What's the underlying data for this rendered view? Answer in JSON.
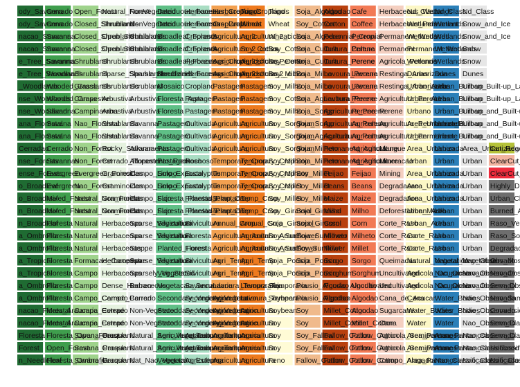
{
  "chart_data": {
    "type": "table",
    "title": "",
    "xlabel": "",
    "ylabel": "",
    "grid": false,
    "legend": "none",
    "columns": [
      {
        "color": "#1f6b32",
        "cells": [
          "ody_Savanna",
          "ody_Savanna",
          "nacao_Savanna",
          "nacao_Savanna",
          "e_Tree_Savanna",
          "e_Tree_Savanna",
          "_Woodlands",
          "nse_Woodlands",
          "nse_Woodland",
          "ana_Florestal",
          "ana_Florestal",
          "Cerradao",
          "nse_Forests",
          "ense_Forests",
          "o_Broadleaf",
          "o_Broadleaf",
          "n_Broadleaf",
          "n_Broadleaf",
          "a_Ombrofila",
          "a_Ombrofila",
          "a_Tropical",
          "a_Tropical",
          "a_Ombrofila",
          "a_Ombrofila",
          "nacao_Florestal",
          "nacao_Florestal",
          "Floresta",
          "Forest",
          "n_Needleleaf"
        ]
      },
      {
        "color": "#3f9e4d",
        "cells": [
          "Cerrado",
          "Cerrado",
          "Savanna",
          "Savanna",
          "Savanna",
          "Woodlands",
          "Wooded_Grass",
          "Wooded_Grass",
          "Savanna",
          "Savana",
          "Savana",
          "Cerrado",
          "Savannas",
          "Evergreen",
          "Evergreen",
          "Mixed_Forest",
          "Mixed_Forest",
          "Floresta",
          "Floresta",
          "Floresta",
          "Floresta",
          "Floresta",
          "Floresta",
          "Floresta",
          "Mata_Araucaria",
          "Mata_Araucaria",
          "Floresta_Open_Forest",
          "Open_Forest",
          "Floresta_Ombrofila"
        ]
      },
      {
        "color": "#9fd38c",
        "cells": [
          "Open_Forest",
          "Closed_Shrubland",
          "Closed_Shrubland",
          "Closed_Shrubland",
          "Shrubland",
          "Shrubland",
          "Grasslands",
          "Campestre",
          "Campinarana",
          "Nao_Florestal",
          "Nao_Florestal",
          "Non_Forest",
          "Non_Forest",
          "Evergreen_Forest",
          "Nao_Forest",
          "Natural_Non_Forest",
          "Natural_Non_Forest",
          "Natural",
          "Natural",
          "Natural",
          "Formacao_Campestre",
          "Campo",
          "Campo",
          "Campo_Cerrado",
          "Campo_Cerrado",
          "Campo_Cerrado",
          "Savana_Parque",
          "Savana_Parque",
          "Savana_Parque"
        ]
      },
      {
        "color": "#e5f2df",
        "cells": [
          "Natural_Forest",
          "Shrublands",
          "Open_Shrublands",
          "Open_Shrublands",
          "Shrublands",
          "Sparse_Shrublands",
          "Shrublands",
          "Arbustiva",
          "Arbustiva",
          "Shrublands",
          "Shrublands",
          "Rocky_Savanna",
          "Cerrado_Rupestre",
          "Graminoides",
          "Graminoides",
          "Graminoides",
          "Graminoides",
          "Herbaceous",
          "Herbaceous",
          "Herbaceous",
          "Herbaceous",
          "Herbaceous",
          "Dense_Herbaceous",
          "Campo_Cerrado",
          "Estepe",
          "Estepe",
          "Grassland",
          "Grassland",
          "Grassland"
        ]
      },
      {
        "color": "#e9ecea",
        "cells": [
          "NonVegetated",
          "NonVegetated",
          "Shrublands",
          "Shrublands",
          "Shrublands",
          "Sparse_Shrublands",
          "Scrubland",
          "Arbustiva",
          "Arbustiva",
          "Savanna",
          "Savanna",
          "Afloramento",
          "Afloramento_Rochoso",
          "Campo_Limpo",
          "Campo_Limpo",
          "Campo_Sujo",
          "Campo_Sujo",
          "Sparse_Vegetation",
          "Sparse_Vegetation",
          "Steppe",
          "Sparse_Vegetation",
          "Sparsely_Vegetated",
          "Barren",
          "Barren",
          "Non-Vegetated",
          "Non-Vegetated",
          "Natural_Sem_Vegetacao",
          "Natural_Sem_Vegetacao",
          "Nat_Nao_Vegetal"
        ]
      },
      {
        "color": "#5fbf86",
        "cells": [
          "Deciduous_Forests",
          "Deciduous_Forests",
          "Broadleaf_Forests",
          "Broadleaf_Forests",
          "Broadleaf_Forests",
          "Needleleaf_Forests",
          "Mosaico",
          "Floresta_Agro",
          "Floresta",
          "Pastagem",
          "Pastagem",
          "Pastagem",
          "Pastagem",
          "Solo_Exposto",
          "Solo_Exposto",
          "Floresta_Plantada",
          "Floresta_Plantada",
          "Silvicultura",
          "Silvicultura",
          "Planted_Forest",
          "Silvicultura",
          "Veg_Sec",
          "Vegetacao_Secundaria",
          "Secondary_Vegetation",
          "Secondary_Vegetation",
          "Secondary_Vegetation",
          "Agricultura_Temporaria",
          "Agricultura_Temporaria",
          "Vegetacao_Estepica"
        ]
      },
      {
        "color": "#a9ddc3",
        "cells": [
          "Herbaceous_Croplands",
          "Herbaceous_Croplands",
          "Croplands",
          "Croplands",
          "Herbaceous_Croplands",
          "Herbaceous_Croplands",
          "Cropland",
          "Pastagem",
          "Pastagem",
          "Cultivada",
          "Cultivada",
          "Cultivada",
          "Rochoso",
          "Eucalyptus",
          "Eucalyptus",
          "Floresta_Plantada",
          "Floresta_Plantada",
          "Silvicultura",
          "Floresta",
          "Floresta",
          "Silvicultura",
          "Silvicultura",
          "Savanna",
          "Secondary_Vegetation",
          "Secondary_Vegetation",
          "Secondary_Vegetation",
          "Agricultura_Temporaria",
          "Agricultura_Temporaria",
          "Agricultura"
        ]
      },
      {
        "color": "#f2a050",
        "cells": [
          "Herbaceous_Croplands",
          "Croplands",
          "Agricultura_2",
          "Agricultura_2_ciclos",
          "Agricultura_2_ciclos",
          "Agricultura_2_ciclos",
          "Pastagem",
          "Pastagem",
          "Pastagem",
          "Agricultura",
          "Agricultura",
          "Agricultura",
          "Temporary_Crop",
          "Temporary_Crop",
          "Temporary_Crop",
          "Temp_Crop",
          "Temp_Crop",
          "Annual_Crop",
          "Agricultura_Anual",
          "Agricultura_Anual",
          "Agri_Temp",
          "Agri_Temp",
          "Lavoura_Temporaria",
          "Agricultura",
          "Agricultura",
          "Agricultura",
          "Agricultura",
          "Agricultura",
          "Agricultura"
        ]
      },
      {
        "color": "#ee7a1e",
        "cells": [
          "Trigo",
          "Wheat",
          "Agricultura_2_ciclos",
          "Soy_Cotton",
          "Agricultura_Perene",
          "Agricultura_2_ciclos",
          "Pastagem",
          "Pastagem",
          "Pastagem",
          "Agricultura",
          "Agricultura",
          "Agricultura",
          "Temporary_Crop",
          "Temporary_Crop",
          "Temporary_Crop",
          "Temp_Crop",
          "Temp_Crop",
          "Annual_Crop",
          "Agricultura_Anual",
          "Agricultura_Anual",
          "Agri_Temp",
          "Agri_Temp",
          "Lavoura_Temporaria",
          "Lavoura_Temporaria",
          "Agricultura",
          "Agricultura",
          "Agricultura",
          "Agricultura",
          "Agricultura"
        ]
      },
      {
        "color": "#fffbd6",
        "cells": [
          "Trigo",
          "Wheat",
          "Wheat",
          "Soy_Cotton",
          "Soy_Cotton",
          "Soy_Milho",
          "Soy_Milho",
          "Soy_Cotton",
          "Soy_Milho",
          "Soy_Sorghum",
          "Soy_Sorghum",
          "Soy_Sorghum",
          "Soy_Milheto",
          "Soy_Milheto",
          "Soy_Millet",
          "Soy_Millet",
          "Soy_Girassol",
          "Soja_Girassol",
          "Soy_Sunflower",
          "Soy_Sunflower",
          "Soja_Pousio",
          "Soja_Pousio",
          "Soja",
          "Soybean",
          "Soybean",
          "Soy",
          "Soy",
          "Soy",
          "Feno"
        ]
      },
      {
        "color": "#f0ba8c",
        "cells": [
          "Soja_Algodao",
          "Soy_Cotton",
          "Soja_Algodao",
          "Soja_Cultura",
          "Soja_Cultura",
          "Soja_Milho",
          "Soja_Milho",
          "Soja_Agricultura",
          "Soja_Sorgo",
          "Soja_Sorgo",
          "Soja_Agricultura",
          "Soja_Milheto",
          "Soja_Milheto",
          "Soy_Millet",
          "Soy_Millet",
          "Soy_Millet",
          "Soja_Girassol",
          "Soja_Girassol",
          "Soja_Sunflower",
          "Soy_Sunflower",
          "Soja_Pousio",
          "Soja_Pousio",
          "Pousio_Algodao",
          "Pousio_Algodao",
          "Soy",
          "Soy",
          "Soy_Fallow",
          "Soy_Fallow",
          "Fallow_Cotton"
        ]
      },
      {
        "color": "#b8400e",
        "cells": [
          "Algodao",
          "Cotton",
          "Perennial_Crop",
          "Cultura_Perene",
          "Cultura_Perene",
          "Lavoura_Perene",
          "Lavoura_Perene",
          "Lavoura_Perene",
          "Agricultura_Perene",
          "Agricultura_Perene",
          "Agricultura_Perene",
          "Permanent_Agriculture",
          "Permanent_Agriculture",
          "Feijao",
          "Beans",
          "Maize",
          "Milho",
          "Corn",
          "Milheto",
          "Millet",
          "Sorgo",
          "Sorghum",
          "Pousio_Algodao",
          "Algodao",
          "Millet_Cotton",
          "Millet_Cotton",
          "Fallow_Cotton",
          "Fallow_Cotton",
          "Fallow_Cotton"
        ]
      },
      {
        "color": "#f27a55",
        "cells": [
          "Cafe",
          "Coffee",
          "Perennial",
          "Cultura",
          "Perene",
          "Lavoura",
          "Lavoura",
          "Perene",
          "Perene",
          "Agricultura",
          "Agricultura",
          "Agricultura",
          "Agricultura",
          "Feijao",
          "Beans",
          "Maize",
          "Milho",
          "Corn",
          "Milheto",
          "Millet",
          "Sorgo",
          "Sorghum",
          "Uncultivated",
          "Algodao",
          "Algodao",
          "Millet_Cotton",
          "Fallow_Cotton",
          "Fallow_Cotton",
          "Fallow_Cotton"
        ]
      },
      {
        "color": "#f4cfc0",
        "cells": [
          "Herbaceous_Wetlands",
          "Herbaceous_Permanent",
          "Permanent_Wetlands",
          "Permanent",
          "Agricola_Perenne",
          "Restinga_Arborizada",
          "Restinga_Arborizada",
          "Agricultura_Perene",
          "Perene",
          "Agricultura_Permanente",
          "Agricultura_Permanente",
          "Mangue",
          "Mineracao",
          "Mining",
          "Degradacao",
          "Degradation",
          "Deforestation_Mask",
          "Corte_Raso",
          "Corte_Raso",
          "Corte_Raso",
          "Queimadas",
          "Uncultivated",
          "Uncultivated",
          "Cana_de_Acucar",
          "Sugarcane",
          "Cana",
          "Agricola_Semiperenne",
          "Agricola_Semiperenne",
          "Campo_Alagado"
        ]
      },
      {
        "color": "#fcf7c6",
        "cells": [
          "Nd_Class",
          "Wetlands",
          "Wetlands",
          "Permanent_Wetlands",
          "Wetlands",
          "Dunas",
          "Urban_Areas",
          "Urban_Areas",
          "Urbano",
          "Area_Urbanizada",
          "Urban",
          "Area_Urbanizada",
          "Urban",
          "Area_Urbanizada",
          "Area_Urbanizada",
          "Area_Urbanizada",
          "Urban_Area",
          "Urban_Area",
          "Corte_Raso",
          "Corte_Raso",
          "Natural_Vegetation",
          "Agricola_Ocupacao",
          "Agricola_Ocupacao",
          "Cana",
          "Water_Bodies",
          "Water",
          "Area_Pantanosa",
          "Area_Pantanosa",
          "Area_Pantanosa"
        ]
      },
      {
        "color": "#2b7fb8",
        "cells": [
          "Nd_Class",
          "Wetlands",
          "Wetlands",
          "Wetlands",
          "Wetlands",
          "Dunes",
          "Urban_Built-up",
          "Urban_Built-up",
          "Urban_Built-up",
          "Urban_Built-up",
          "Urban_Built-up",
          "Urban",
          "Urban",
          "Urban",
          "Urban",
          "Urban",
          "Urban",
          "Urban",
          "Urban",
          "Urban",
          "Natural_Vegetation",
          "Nao_Observado",
          "Nao_Observado",
          "Water_Bodies",
          "Water_Bodies",
          "Water",
          "Area_Pantanosa",
          "Area_Pantanosa",
          "Nao_Classificado"
        ]
      },
      {
        "color": "#e6e6e6",
        "cells": [
          "Nd_Class",
          "Snow_and_Ice",
          "Snow_and_Ice",
          "Snow",
          "Snow",
          "Dunes",
          "Urban_Built-up_Lands",
          "Urban_Built-up_Lands",
          "Urban_and_Built-up",
          "Urban_and_Built-up",
          "Urban_and_Built-up",
          "Area_Urbanizada",
          "Urban",
          "Urban",
          "Urban",
          "Urban",
          "Urban",
          "Urban",
          "Urban",
          "Urban",
          "Nao_Observado",
          "Nao_Observado",
          "Nao_Observado",
          "Nao_Observado",
          "Nao_Observado",
          "Nao_Observado",
          "Nao_Observado",
          "Nao_Classificado",
          "Nao_Classificado"
        ]
      },
      {
        "color": "#6e6e6e",
        "cells": [
          "",
          "",
          "",
          "",
          "",
          "",
          "",
          "",
          "",
          "",
          "",
          "Cat_Regeneracao",
          "ClearCut_Barely",
          "ClearCut_Burned",
          "Highly_Degraded",
          "Urban_Cleared_Area",
          "Burned_Area",
          "Raso_Vegetacao",
          "Raso_SoloExposto",
          "Degradacao",
          "Obs_Mosaic",
          "Nao_Observado",
          "Sem_Observacao",
          "Nao_Sample",
          "Conversion_Area",
          "Sem_Classe",
          "Sem_Classe",
          "Unclassified",
          "Nao_Classificado"
        ]
      }
    ],
    "row_accents": [
      {
        "row": 11,
        "color": "#b5c23a"
      },
      {
        "row": 12,
        "color": "#f2b4a0"
      },
      {
        "row": 13,
        "color": "#ee2b3c"
      }
    ],
    "row_label_overrides": {
      "0": "ody_Savanna",
      "11": "Cerradao"
    }
  }
}
